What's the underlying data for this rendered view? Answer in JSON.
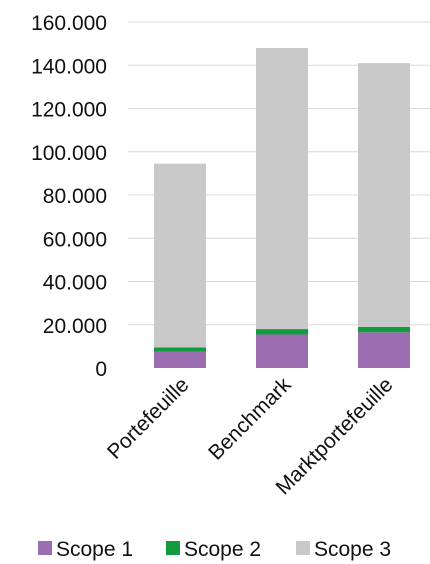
{
  "chart_data": {
    "type": "bar",
    "stacked": true,
    "categories": [
      "Portefeuille",
      "Benchmark",
      "Marktportefeuille"
    ],
    "series": [
      {
        "name": "Scope 1",
        "color": "#9b6eb1",
        "values": [
          7500,
          15500,
          16500
        ]
      },
      {
        "name": "Scope 2",
        "color": "#129a3f",
        "values": [
          2000,
          2500,
          2500
        ]
      },
      {
        "name": "Scope 3",
        "color": "#c9c9c9",
        "values": [
          85000,
          130000,
          122000
        ]
      }
    ],
    "yticks": [
      "0",
      "20.000",
      "40.000",
      "60.000",
      "80.000",
      "100.000",
      "120.000",
      "140.000",
      "160.000"
    ],
    "ylim": [
      0,
      160000
    ],
    "grid": true,
    "legend": "bottom"
  }
}
